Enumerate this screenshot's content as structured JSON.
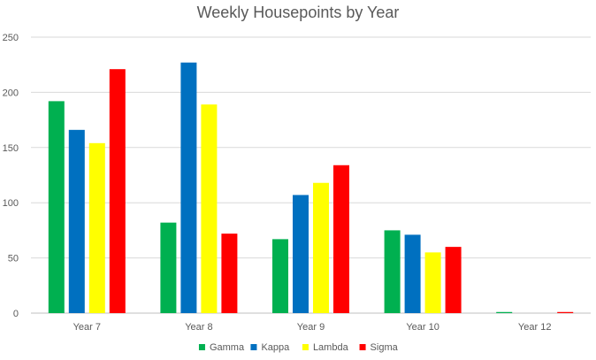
{
  "chart_data": {
    "type": "bar",
    "title": "Weekly Housepoints by Year",
    "xlabel": "",
    "ylabel": "",
    "ylim": [
      0,
      250
    ],
    "yticks": [
      0,
      50,
      100,
      150,
      200,
      250
    ],
    "grid": true,
    "legend_position": "bottom",
    "categories": [
      "Year 7",
      "Year 8",
      "Year 9",
      "Year 10",
      "Year 12"
    ],
    "series": [
      {
        "name": "Gamma",
        "color": "#00b050",
        "values": [
          192,
          82,
          67,
          75,
          1
        ]
      },
      {
        "name": "Kappa",
        "color": "#0070c0",
        "values": [
          166,
          227,
          107,
          71,
          0
        ]
      },
      {
        "name": "Lambda",
        "color": "#ffff00",
        "values": [
          154,
          189,
          118,
          55,
          0
        ]
      },
      {
        "name": "Sigma",
        "color": "#ff0000",
        "values": [
          221,
          72,
          134,
          60,
          1
        ]
      }
    ]
  }
}
